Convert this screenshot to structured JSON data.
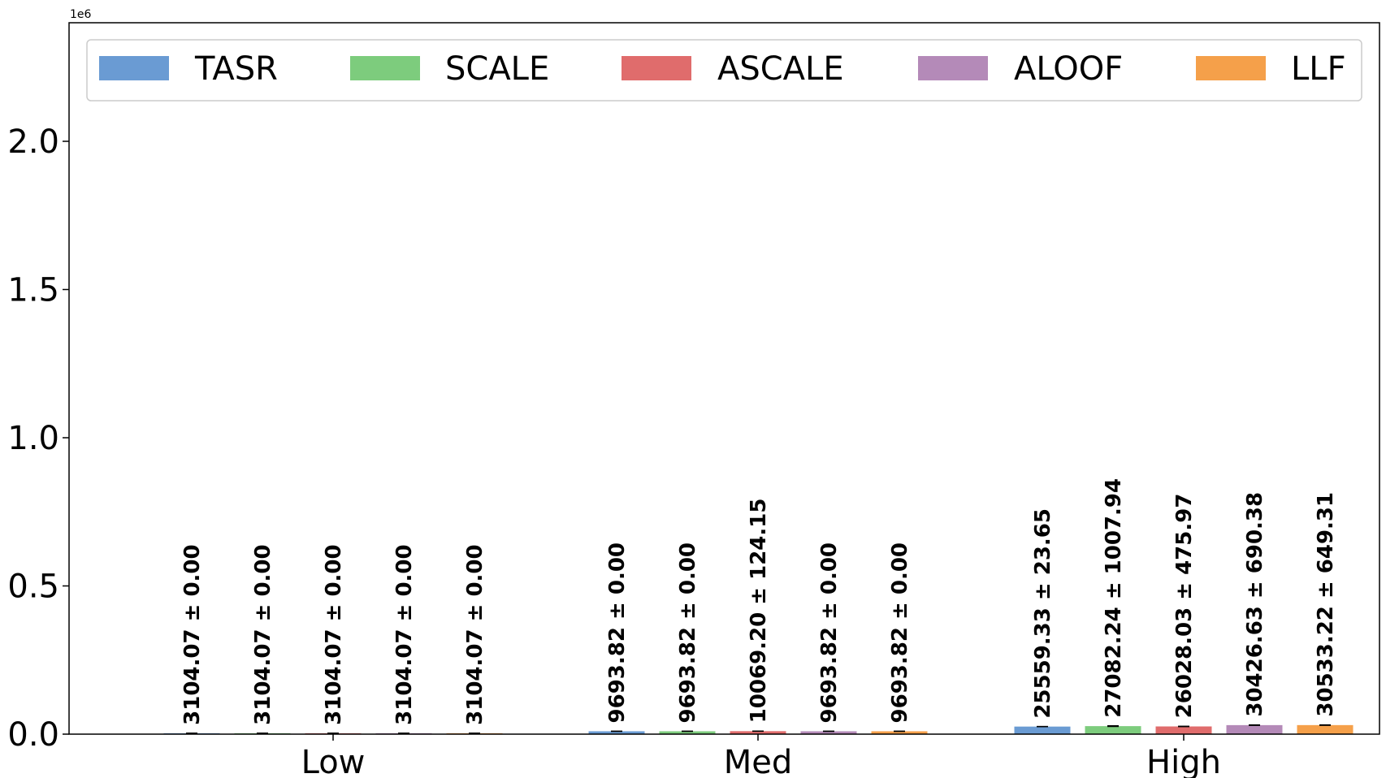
{
  "chart_data": {
    "type": "bar",
    "exponent_label": "1e6",
    "categories": [
      "Low",
      "Med",
      "High"
    ],
    "series": [
      {
        "name": "TASR",
        "color": "#6a9bd3",
        "values": [
          3104.07,
          9693.82,
          25559.33
        ],
        "errors": [
          0.0,
          0.0,
          23.65
        ],
        "labels": [
          "3104.07 ± 0.00",
          "9693.82 ± 0.00",
          "25559.33 ± 23.65"
        ]
      },
      {
        "name": "SCALE",
        "color": "#7dcc7d",
        "values": [
          3104.07,
          9693.82,
          27082.24
        ],
        "errors": [
          0.0,
          0.0,
          1007.94
        ],
        "labels": [
          "3104.07 ± 0.00",
          "9693.82 ± 0.00",
          "27082.24 ± 1007.94"
        ]
      },
      {
        "name": "ASCALE",
        "color": "#e06c6c",
        "values": [
          3104.07,
          10069.2,
          26028.03
        ],
        "errors": [
          0.0,
          124.15,
          475.97
        ],
        "labels": [
          "3104.07 ± 0.00",
          "10069.20 ± 124.15",
          "26028.03 ± 475.97"
        ]
      },
      {
        "name": "ALOOF",
        "color": "#b48ab8",
        "values": [
          3104.07,
          9693.82,
          30426.63
        ],
        "errors": [
          0.0,
          0.0,
          690.38
        ],
        "labels": [
          "3104.07 ± 0.00",
          "9693.82 ± 0.00",
          "30426.63 ± 690.38"
        ]
      },
      {
        "name": "LLF",
        "color": "#f5a04a",
        "values": [
          3104.07,
          9693.82,
          30533.22
        ],
        "errors": [
          0.0,
          0.0,
          649.31
        ],
        "labels": [
          "3104.07 ± 0.00",
          "9693.82 ± 0.00",
          "30533.22 ± 649.31"
        ]
      }
    ],
    "yticks": [
      0.0,
      500000,
      1000000,
      1500000,
      2000000
    ],
    "ytick_labels": [
      "0.0",
      "0.5",
      "1.0",
      "1.5",
      "2.0"
    ],
    "ylim": [
      0,
      2400000
    ],
    "grid": false,
    "legend_position": "top"
  }
}
